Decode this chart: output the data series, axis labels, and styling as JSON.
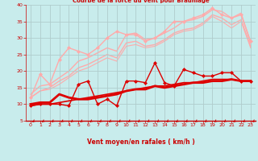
{
  "title": "Courbe de la force du vent pour Braunlage",
  "xlabel": "Vent moyen/en rafales ( km/h )",
  "bg_color": "#c8ecec",
  "grid_color": "#b0cccc",
  "xlim": [
    -0.5,
    23.5
  ],
  "ylim": [
    5,
    40
  ],
  "yticks": [
    5,
    10,
    15,
    20,
    25,
    30,
    35,
    40
  ],
  "xticks": [
    0,
    1,
    2,
    3,
    4,
    5,
    6,
    7,
    8,
    9,
    10,
    11,
    12,
    13,
    14,
    15,
    16,
    17,
    18,
    19,
    20,
    21,
    22,
    23
  ],
  "series": [
    {
      "x": [
        0,
        1,
        2,
        3,
        4,
        5,
        6,
        7,
        8,
        9,
        10,
        11,
        12,
        13,
        14,
        15,
        16,
        17,
        18,
        19,
        20,
        21,
        22,
        23
      ],
      "y": [
        9.5,
        10,
        10,
        10,
        9.5,
        16,
        17,
        10,
        11.5,
        9.5,
        17,
        17,
        16.5,
        22.5,
        16.5,
        15.5,
        20.5,
        19.5,
        18.5,
        18.5,
        19.5,
        19.5,
        17,
        17
      ],
      "color": "#dd0000",
      "lw": 1.0,
      "marker": "D",
      "ms": 2.0,
      "zorder": 5
    },
    {
      "x": [
        0,
        1,
        2,
        3,
        4,
        5,
        6,
        7,
        8,
        9,
        10,
        11,
        12,
        13,
        14,
        15,
        16,
        17,
        18,
        19,
        20,
        21,
        22,
        23
      ],
      "y": [
        10,
        10.5,
        10.5,
        13,
        12,
        11.5,
        11.5,
        12,
        12.5,
        13,
        14,
        14.5,
        14.5,
        15.5,
        15,
        15.5,
        16,
        16.5,
        16.5,
        17,
        17,
        17.5,
        17,
        17
      ],
      "color": "#dd0000",
      "lw": 2.0,
      "marker": null,
      "ms": 0,
      "zorder": 4
    },
    {
      "x": [
        0,
        1,
        2,
        3,
        4,
        5,
        6,
        7,
        8,
        9,
        10,
        11,
        12,
        13,
        14,
        15,
        16,
        17,
        18,
        19,
        20,
        21,
        22,
        23
      ],
      "y": [
        9.5,
        10,
        10,
        10.5,
        11,
        11.5,
        12,
        12.5,
        13,
        13.5,
        14,
        14.5,
        15,
        15.5,
        15.5,
        16,
        16.5,
        16.5,
        17,
        17.5,
        17.5,
        17.5,
        17,
        17
      ],
      "color": "#dd0000",
      "lw": 1.2,
      "marker": null,
      "ms": 0,
      "zorder": 3
    },
    {
      "x": [
        0,
        1,
        2,
        3,
        4,
        5,
        6,
        7,
        8,
        9,
        10,
        11,
        12,
        13,
        14,
        15,
        16,
        17,
        18,
        19,
        20,
        21,
        22,
        23
      ],
      "y": [
        12,
        19,
        16,
        23.5,
        27,
        26,
        25,
        27,
        30,
        32,
        31,
        31,
        29,
        30,
        32,
        35,
        35,
        36,
        37,
        39,
        37,
        36,
        37,
        29
      ],
      "color": "#ffaaaa",
      "lw": 1.0,
      "marker": "D",
      "ms": 2.0,
      "zorder": 2
    },
    {
      "x": [
        0,
        1,
        2,
        3,
        4,
        5,
        6,
        7,
        8,
        9,
        10,
        11,
        12,
        13,
        14,
        15,
        16,
        17,
        18,
        19,
        20,
        21,
        22,
        23
      ],
      "y": [
        13,
        15.5,
        16,
        18,
        20,
        23,
        24,
        25.5,
        27,
        26,
        31,
        31.5,
        29.5,
        30,
        31.5,
        33,
        35,
        35.5,
        36.5,
        38.5,
        38,
        36,
        37.5,
        28.5
      ],
      "color": "#ffaaaa",
      "lw": 1.0,
      "marker": null,
      "ms": 0,
      "zorder": 1
    },
    {
      "x": [
        0,
        1,
        2,
        3,
        4,
        5,
        6,
        7,
        8,
        9,
        10,
        11,
        12,
        13,
        14,
        15,
        16,
        17,
        18,
        19,
        20,
        21,
        22,
        23
      ],
      "y": [
        12,
        14,
        15,
        17,
        18.5,
        21,
        22,
        23.5,
        25,
        24,
        28.5,
        29,
        27.5,
        28,
        29.5,
        31.5,
        32.5,
        33,
        34.5,
        37,
        36,
        34,
        35.5,
        27.5
      ],
      "color": "#ffaaaa",
      "lw": 1.0,
      "marker": null,
      "ms": 0,
      "zorder": 1
    },
    {
      "x": [
        0,
        1,
        2,
        3,
        4,
        5,
        6,
        7,
        8,
        9,
        10,
        11,
        12,
        13,
        14,
        15,
        16,
        17,
        18,
        19,
        20,
        21,
        22,
        23
      ],
      "y": [
        12,
        14,
        14.5,
        16,
        18,
        20,
        21,
        22.5,
        24,
        23,
        27.5,
        28,
        27,
        27.5,
        29,
        31,
        32,
        32.5,
        34,
        36.5,
        35,
        33,
        35,
        27
      ],
      "color": "#ffaaaa",
      "lw": 0.8,
      "marker": null,
      "ms": 0,
      "zorder": 1
    }
  ],
  "arrow_color": "#cc0000",
  "tick_label_color": "#cc0000",
  "xlabel_color": "#cc0000",
  "spine_color": "#cc0000"
}
